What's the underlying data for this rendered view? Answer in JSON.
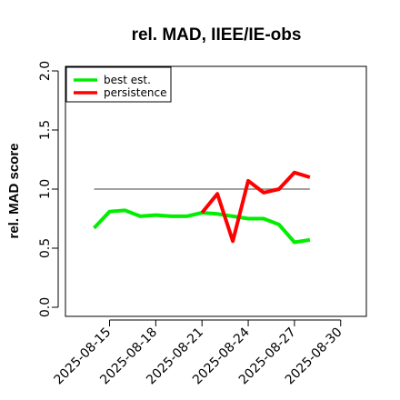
{
  "chart_data": {
    "type": "line",
    "title": "rel. MAD, IIEE/IE-obs",
    "ylabel": "rel. MAD score",
    "xlabel": "",
    "ylim": [
      0.0,
      2.0
    ],
    "y_ticks": [
      "0.0",
      "0.5",
      "1.0",
      "1.5",
      "2.0"
    ],
    "x_ticks": [
      "2025-08-15",
      "2025-08-18",
      "2025-08-21",
      "2025-08-24",
      "2025-08-27",
      "2025-08-30"
    ],
    "legend_position": "top-left",
    "reference_line": {
      "value": 1.0,
      "from": "2025-08-14",
      "to": "2025-08-28",
      "color": "#808080"
    },
    "series": [
      {
        "name": "best est.",
        "color": "#00ee00",
        "x": [
          "2025-08-14",
          "2025-08-15",
          "2025-08-16",
          "2025-08-17",
          "2025-08-18",
          "2025-08-19",
          "2025-08-20",
          "2025-08-21",
          "2025-08-22",
          "2025-08-23",
          "2025-08-24",
          "2025-08-25",
          "2025-08-26",
          "2025-08-27",
          "2025-08-28"
        ],
        "values": [
          0.67,
          0.81,
          0.82,
          0.77,
          0.78,
          0.77,
          0.77,
          0.8,
          0.79,
          0.77,
          0.75,
          0.75,
          0.7,
          0.55,
          0.57
        ]
      },
      {
        "name": "persistence",
        "color": "#ff0000",
        "x": [
          "2025-08-21",
          "2025-08-22",
          "2025-08-23",
          "2025-08-24",
          "2025-08-25",
          "2025-08-26",
          "2025-08-27",
          "2025-08-28"
        ],
        "values": [
          0.8,
          0.96,
          0.56,
          1.07,
          0.97,
          1.0,
          1.14,
          1.1
        ]
      }
    ]
  }
}
